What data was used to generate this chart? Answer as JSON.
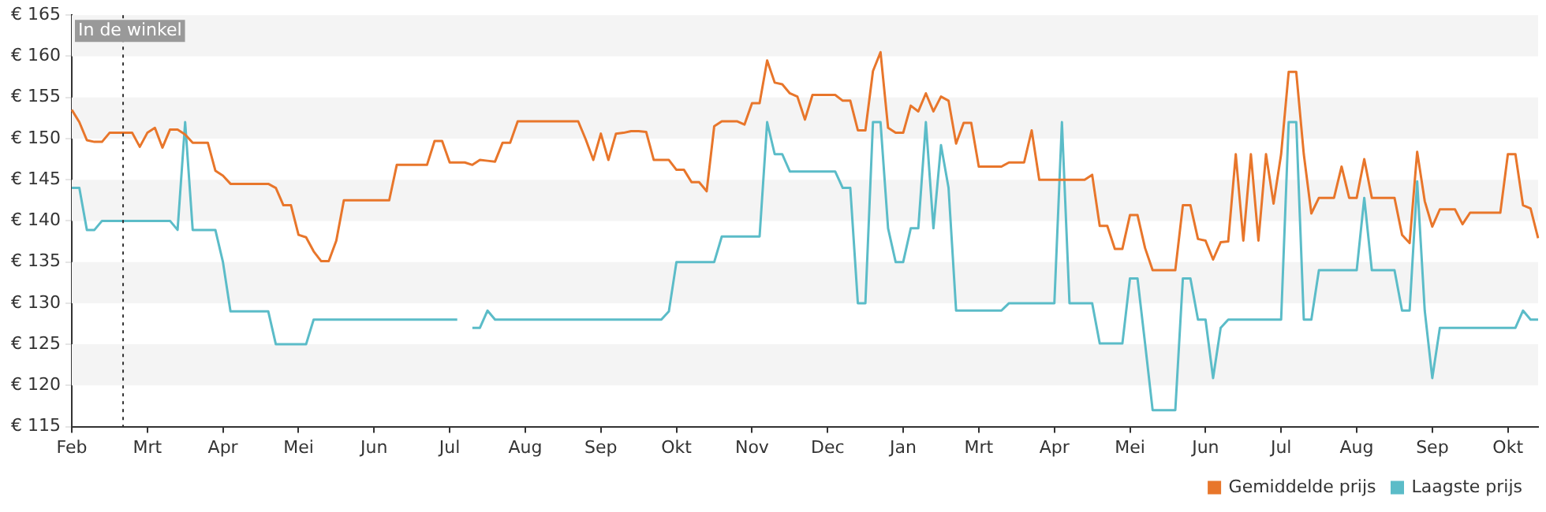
{
  "chart_data": {
    "type": "line",
    "categories": [
      "Feb",
      null,
      null,
      null,
      null,
      null,
      null,
      null,
      null,
      null,
      "Mrt",
      null,
      null,
      null,
      null,
      null,
      null,
      null,
      null,
      null,
      "Apr",
      null,
      null,
      null,
      null,
      null,
      null,
      null,
      null,
      null,
      "Mei",
      null,
      null,
      null,
      null,
      null,
      null,
      null,
      null,
      null,
      "Jun",
      null,
      null,
      null,
      null,
      null,
      null,
      null,
      null,
      null,
      "Jul",
      null,
      null,
      null,
      null,
      null,
      null,
      null,
      null,
      null,
      "Aug",
      null,
      null,
      null,
      null,
      null,
      null,
      null,
      null,
      null,
      "Sep",
      null,
      null,
      null,
      null,
      null,
      null,
      null,
      null,
      null,
      "Okt",
      null,
      null,
      null,
      null,
      null,
      null,
      null,
      null,
      null,
      "Nov",
      null,
      null,
      null,
      null,
      null,
      null,
      null,
      null,
      null,
      "Dec",
      null,
      null,
      null,
      null,
      null,
      null,
      null,
      null,
      null,
      "Jan",
      null,
      null,
      null,
      null,
      null,
      null,
      null,
      null,
      null,
      "Mrt",
      null,
      null,
      null,
      null,
      null,
      null,
      null,
      null,
      null,
      "Apr",
      null,
      null,
      null,
      null,
      null,
      null,
      null,
      null,
      null,
      "Mei",
      null,
      null,
      null,
      null,
      null,
      null,
      null,
      null,
      null,
      "Jun",
      null,
      null,
      null,
      null,
      null,
      null,
      null,
      null,
      null,
      "Jul",
      null,
      null,
      null,
      null,
      null,
      null,
      null,
      null,
      null,
      "Aug",
      null,
      null,
      null,
      null,
      null,
      null,
      null,
      null,
      null,
      "Sep",
      null,
      null,
      null,
      null,
      null,
      null,
      null,
      null,
      null,
      "Okt",
      null,
      null,
      null,
      null
    ],
    "ylim": [
      115,
      165
    ],
    "yticks": [
      {
        "value": 115,
        "label": "€ 115"
      },
      {
        "value": 120,
        "label": "€ 120"
      },
      {
        "value": 125,
        "label": "€ 125"
      },
      {
        "value": 130,
        "label": "€ 130"
      },
      {
        "value": 135,
        "label": "€ 135"
      },
      {
        "value": 140,
        "label": "€ 140"
      },
      {
        "value": 145,
        "label": "€ 145"
      },
      {
        "value": 150,
        "label": "€ 150"
      },
      {
        "value": 155,
        "label": "€ 155"
      },
      {
        "value": 160,
        "label": "€ 160"
      },
      {
        "value": 165,
        "label": "€ 165"
      }
    ],
    "legend": "bottom right",
    "marker": "none",
    "line_style": "solid",
    "annotations": [
      "In de winkel"
    ],
    "series": [
      {
        "name": "Gemiddelde prijs",
        "color": "#e8762b",
        "values": [
          153.5,
          152,
          149.8,
          149.6,
          149.6,
          150.7,
          150.7,
          150.7,
          150.7,
          149,
          150.7,
          151.3,
          148.9,
          151.1,
          151.1,
          150.5,
          149.5,
          149.5,
          149.5,
          146.1,
          145.5,
          144.5,
          144.5,
          144.5,
          144.5,
          144.5,
          144.5,
          144,
          141.9,
          141.9,
          138.3,
          138,
          136.3,
          135.1,
          135.1,
          137.6,
          142.5,
          142.5,
          142.5,
          142.5,
          142.5,
          142.5,
          142.5,
          146.8,
          146.8,
          146.8,
          146.8,
          146.8,
          149.7,
          149.7,
          147.1,
          147.1,
          147.1,
          146.8,
          147.4,
          147.3,
          147.2,
          149.5,
          149.5,
          152.1,
          152.1,
          152.1,
          152.1,
          152.1,
          152.1,
          152.1,
          152.1,
          152.1,
          149.9,
          147.4,
          150.6,
          147.4,
          150.6,
          150.7,
          150.9,
          150.9,
          150.8,
          147.4,
          147.4,
          147.4,
          146.2,
          146.2,
          144.7,
          144.7,
          143.6,
          151.5,
          152.1,
          152.1,
          152.1,
          151.7,
          154.3,
          154.3,
          159.5,
          156.8,
          156.6,
          155.5,
          155.1,
          152.3,
          155.3,
          155.3,
          155.3,
          155.3,
          154.6,
          154.6,
          151,
          151,
          158.2,
          160.5,
          151.3,
          150.7,
          150.7,
          154,
          153.3,
          155.5,
          153.3,
          155.1,
          154.6,
          149.4,
          151.9,
          151.9,
          146.6,
          146.6,
          146.6,
          146.6,
          147.1,
          147.1,
          147.1,
          151,
          145,
          145,
          145,
          145,
          145,
          145,
          145,
          145.6,
          139.4,
          139.4,
          136.6,
          136.6,
          140.7,
          140.7,
          136.7,
          134,
          134,
          134,
          134,
          141.9,
          141.9,
          137.8,
          137.6,
          135.3,
          137.4,
          137.5,
          148.1,
          137.6,
          148.1,
          137.6,
          148.1,
          142.1,
          148.1,
          158.1,
          158.1,
          148.1,
          140.9,
          142.8,
          142.8,
          142.8,
          146.6,
          142.8,
          142.8,
          147.5,
          142.8,
          142.8,
          142.8,
          142.8,
          138.3,
          137.3,
          148.4,
          142.4,
          139.3,
          141.4,
          141.4,
          141.4,
          139.6,
          141,
          141,
          141,
          141,
          141,
          148.1,
          148.1,
          141.9,
          141.5,
          137.9
        ]
      },
      {
        "name": "Laagste prijs",
        "color": "#5bbcc8",
        "values": [
          144,
          144,
          138.9,
          138.9,
          140,
          140,
          140,
          140,
          140,
          140,
          140,
          140,
          140,
          140,
          138.9,
          152,
          138.9,
          138.9,
          138.9,
          138.9,
          135,
          129,
          129,
          129,
          129,
          129,
          129,
          125,
          125,
          125,
          125,
          125,
          128,
          128,
          128,
          128,
          128,
          128,
          128,
          128,
          128,
          128,
          128,
          128,
          128,
          128,
          128,
          128,
          128,
          128,
          128,
          128,
          null,
          127,
          127,
          129.1,
          128,
          128,
          128,
          128,
          128,
          128,
          128,
          128,
          128,
          128,
          128,
          128,
          128,
          128,
          128,
          128,
          128,
          128,
          128,
          128,
          128,
          128,
          128,
          129,
          135,
          135,
          135,
          135,
          135,
          135,
          138.1,
          138.1,
          138.1,
          138.1,
          138.1,
          138.1,
          152,
          148.1,
          148.1,
          146,
          146,
          146,
          146,
          146,
          146,
          146,
          144,
          144,
          130,
          130,
          152,
          152,
          139.1,
          135,
          135,
          139.1,
          139.1,
          152,
          139.1,
          149.2,
          144,
          129.1,
          129.1,
          129.1,
          129.1,
          129.1,
          129.1,
          129.1,
          130,
          130,
          130,
          130,
          130,
          130,
          130,
          152,
          130,
          130,
          130,
          130,
          125.1,
          125.1,
          125.1,
          125.1,
          133,
          133,
          125.1,
          117,
          117,
          117,
          117,
          133,
          133,
          128,
          128,
          120.9,
          127,
          128,
          128,
          128,
          128,
          128,
          128,
          128,
          128,
          152,
          152,
          128,
          128,
          134,
          134,
          134,
          134,
          134,
          134,
          142.8,
          134,
          134,
          134,
          134,
          129.1,
          129.1,
          144.8,
          129.1,
          120.9,
          127,
          127,
          127,
          127,
          127,
          127,
          127,
          127,
          127,
          127,
          127,
          129.1,
          128,
          128
        ]
      }
    ]
  }
}
